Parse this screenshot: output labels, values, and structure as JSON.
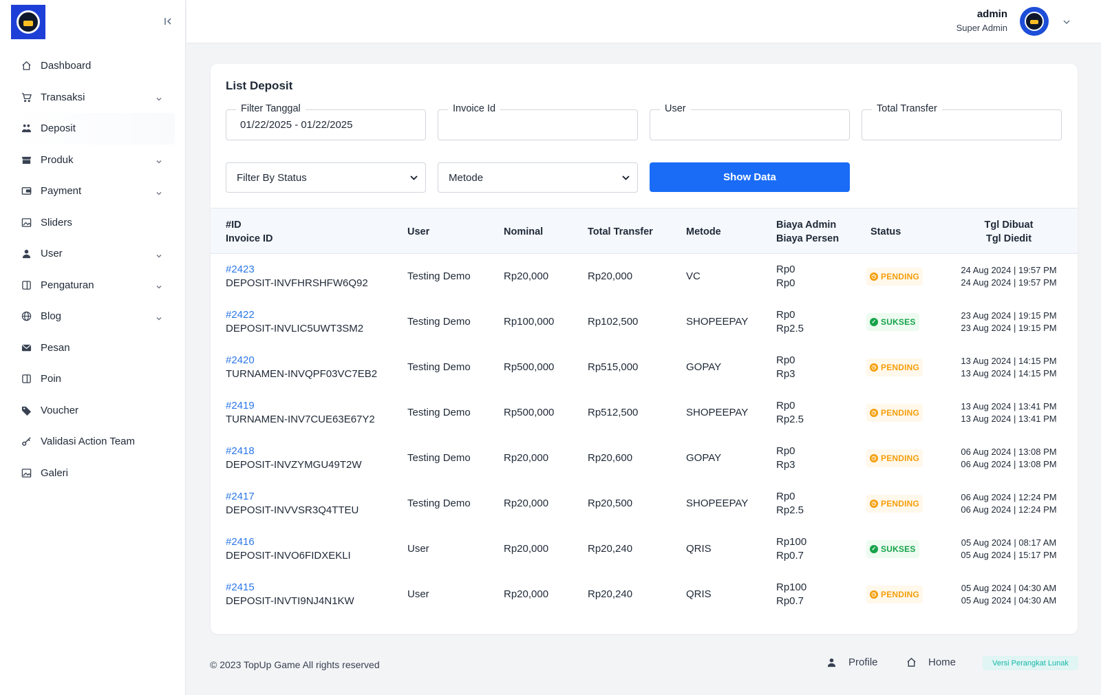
{
  "sidebar": {
    "items": [
      {
        "label": "Dashboard",
        "icon": "home-icon",
        "has_children": false
      },
      {
        "label": "Transaksi",
        "icon": "cart-icon",
        "has_children": true
      },
      {
        "label": "Deposit",
        "icon": "deposit-icon",
        "has_children": false,
        "active": true
      },
      {
        "label": "Produk",
        "icon": "store-icon",
        "has_children": true
      },
      {
        "label": "Payment",
        "icon": "wallet-icon",
        "has_children": true
      },
      {
        "label": "Sliders",
        "icon": "image-icon",
        "has_children": false
      },
      {
        "label": "User",
        "icon": "user-icon",
        "has_children": true
      },
      {
        "label": "Pengaturan",
        "icon": "settings-panel-icon",
        "has_children": true
      },
      {
        "label": "Blog",
        "icon": "globe-icon",
        "has_children": true
      },
      {
        "label": "Pesan",
        "icon": "mail-icon",
        "has_children": false
      },
      {
        "label": "Poin",
        "icon": "panel-icon",
        "has_children": false
      },
      {
        "label": "Voucher",
        "icon": "tag-icon",
        "has_children": false
      },
      {
        "label": "Validasi Action Team",
        "icon": "key-icon",
        "has_children": false
      },
      {
        "label": "Galeri",
        "icon": "image-icon",
        "has_children": false
      }
    ]
  },
  "header": {
    "user_name": "admin",
    "user_role": "Super Admin"
  },
  "card": {
    "title": "List Deposit",
    "filters": {
      "tanggal_label": "Filter Tanggal",
      "tanggal_value": "01/22/2025 - 01/22/2025",
      "invoice_label": "Invoice Id",
      "invoice_value": "",
      "user_label": "User",
      "user_value": "",
      "total_label": "Total Transfer",
      "total_value": "",
      "status_select": "Filter By Status",
      "metode_select": "Metode",
      "show_button": "Show Data"
    },
    "table": {
      "headers": {
        "id": "#ID",
        "invoice": "Invoice ID",
        "user": "User",
        "nominal": "Nominal",
        "total": "Total Transfer",
        "metode": "Metode",
        "biaya_admin": "Biaya Admin",
        "biaya_persen": "Biaya Persen",
        "status": "Status",
        "tgl_dibuat": "Tgl Dibuat",
        "tgl_diedit": "Tgl Diedit"
      },
      "rows": [
        {
          "id": "#2423",
          "invoice": "DEPOSIT-INVFHRSHFW6Q92",
          "user": "Testing Demo",
          "nominal": "Rp20,000",
          "total": "Rp20,000",
          "metode": "VC",
          "biaya_admin": "Rp0",
          "biaya_persen": "Rp0",
          "status": "PENDING",
          "status_type": "pending",
          "created": "24 Aug 2024 | 19:57 PM",
          "edited": "24 Aug 2024 | 19:57 PM"
        },
        {
          "id": "#2422",
          "invoice": "DEPOSIT-INVLIC5UWT3SM2",
          "user": "Testing Demo",
          "nominal": "Rp100,000",
          "total": "Rp102,500",
          "metode": "SHOPEEPAY",
          "biaya_admin": "Rp0",
          "biaya_persen": "Rp2.5",
          "status": "SUKSES",
          "status_type": "sukses",
          "created": "23 Aug 2024 | 19:15 PM",
          "edited": "23 Aug 2024 | 19:15 PM"
        },
        {
          "id": "#2420",
          "invoice": "TURNAMEN-INVQPF03VC7EB2",
          "user": "Testing Demo",
          "nominal": "Rp500,000",
          "total": "Rp515,000",
          "metode": "GOPAY",
          "biaya_admin": "Rp0",
          "biaya_persen": "Rp3",
          "status": "PENDING",
          "status_type": "pending",
          "created": "13 Aug 2024 | 14:15 PM",
          "edited": "13 Aug 2024 | 14:15 PM"
        },
        {
          "id": "#2419",
          "invoice": "TURNAMEN-INV7CUE63E67Y2",
          "user": "Testing Demo",
          "nominal": "Rp500,000",
          "total": "Rp512,500",
          "metode": "SHOPEEPAY",
          "biaya_admin": "Rp0",
          "biaya_persen": "Rp2.5",
          "status": "PENDING",
          "status_type": "pending",
          "created": "13 Aug 2024 | 13:41 PM",
          "edited": "13 Aug 2024 | 13:41 PM"
        },
        {
          "id": "#2418",
          "invoice": "DEPOSIT-INVZYMGU49T2W",
          "user": "Testing Demo",
          "nominal": "Rp20,000",
          "total": "Rp20,600",
          "metode": "GOPAY",
          "biaya_admin": "Rp0",
          "biaya_persen": "Rp3",
          "status": "PENDING",
          "status_type": "pending",
          "created": "06 Aug 2024 | 13:08 PM",
          "edited": "06 Aug 2024 | 13:08 PM"
        },
        {
          "id": "#2417",
          "invoice": "DEPOSIT-INVVSR3Q4TTEU",
          "user": "Testing Demo",
          "nominal": "Rp20,000",
          "total": "Rp20,500",
          "metode": "SHOPEEPAY",
          "biaya_admin": "Rp0",
          "biaya_persen": "Rp2.5",
          "status": "PENDING",
          "status_type": "pending",
          "created": "06 Aug 2024 | 12:24 PM",
          "edited": "06 Aug 2024 | 12:24 PM"
        },
        {
          "id": "#2416",
          "invoice": "DEPOSIT-INVO6FIDXEKLI",
          "user": "User",
          "nominal": "Rp20,000",
          "total": "Rp20,240",
          "metode": "QRIS",
          "biaya_admin": "Rp100",
          "biaya_persen": "Rp0.7",
          "status": "SUKSES",
          "status_type": "sukses",
          "created": "05 Aug 2024 | 08:17 AM",
          "edited": "05 Aug 2024 | 15:17 PM"
        },
        {
          "id": "#2415",
          "invoice": "DEPOSIT-INVTI9NJ4N1KW",
          "user": "User",
          "nominal": "Rp20,000",
          "total": "Rp20,240",
          "metode": "QRIS",
          "biaya_admin": "Rp100",
          "biaya_persen": "Rp0.7",
          "status": "PENDING",
          "status_type": "pending",
          "created": "05 Aug 2024 | 04:30 AM",
          "edited": "05 Aug 2024 | 04:30 AM"
        }
      ]
    }
  },
  "footer": {
    "copyright": "© 2023 TopUp Game All rights reserved",
    "profile_link": "Profile",
    "home_link": "Home",
    "version_badge": "Versi Perangkat Lunak"
  },
  "colors": {
    "primary": "#1a6cf7",
    "link": "#2b77e7",
    "pending": "#f59e0b",
    "sukses": "#16a34a",
    "version": "#14b8a6"
  }
}
